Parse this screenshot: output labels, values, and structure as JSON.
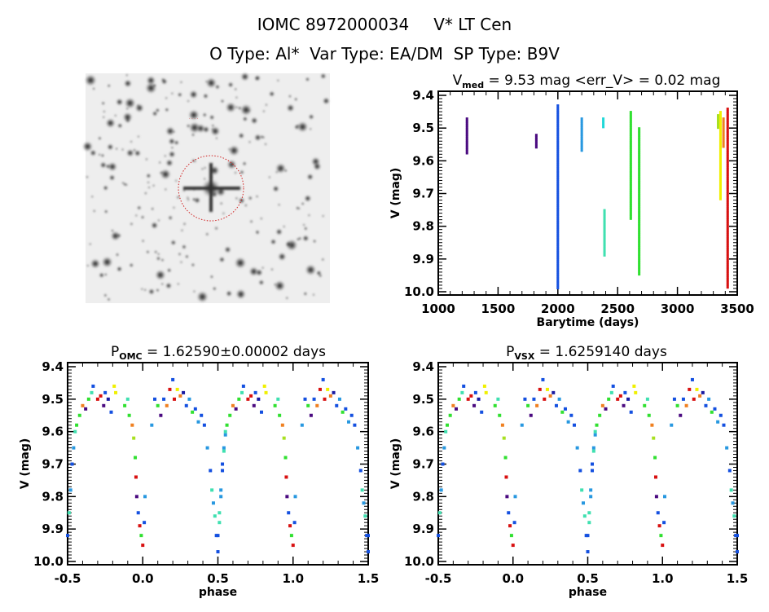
{
  "header": {
    "line1_id": "IOMC 8972000034",
    "line1_name": "V* LT Cen",
    "line2": "O Type: Al*  Var Type: EA/DM  SP Type: B9V"
  },
  "image_panel": {
    "description_marks": "finding chart, red circle on target"
  },
  "colors": {
    "purple": "#4a0a80",
    "blue": "#1450e0",
    "lightblue": "#2898e0",
    "cyan": "#20d8d8",
    "teal": "#40e0b0",
    "green": "#30e030",
    "yellowgreen": "#a8e020",
    "yellow": "#f0f000",
    "orange": "#f08020",
    "red": "#d81010",
    "darkblue": "#1a1aa0"
  },
  "chart_data": [
    {
      "type": "scatter",
      "title_main": "V",
      "title_sub": "med",
      "title_rest": " = 9.53 mag <err_V> = 0.02 mag",
      "xlabel": "Barytime (days)",
      "ylabel": "V (mag)",
      "xlim": [
        1000,
        3500
      ],
      "ylim": [
        10.0,
        9.4
      ],
      "xticks": [
        "1000",
        "1500",
        "2000",
        "2500",
        "3000",
        "3500"
      ],
      "yticks": [
        "9.4",
        "9.5",
        "9.6",
        "9.7",
        "9.8",
        "9.9",
        "10.0"
      ],
      "series": [
        {
          "x": 1240,
          "vmin": 9.47,
          "vmax": 9.58,
          "color": "purple"
        },
        {
          "x": 1820,
          "vmin": 9.52,
          "vmax": 9.56,
          "color": "purple"
        },
        {
          "x": 2000,
          "vmin": 9.43,
          "vmax": 9.99,
          "color": "blue"
        },
        {
          "x": 2200,
          "vmin": 9.47,
          "vmax": 9.57,
          "color": "lightblue"
        },
        {
          "x": 2380,
          "vmin": 9.47,
          "vmax": 9.5,
          "color": "cyan"
        },
        {
          "x": 2390,
          "vmin": 9.75,
          "vmax": 9.89,
          "color": "teal"
        },
        {
          "x": 2610,
          "vmin": 9.45,
          "vmax": 9.78,
          "color": "green"
        },
        {
          "x": 2680,
          "vmin": 9.5,
          "vmax": 9.95,
          "color": "green"
        },
        {
          "x": 3340,
          "vmin": 9.46,
          "vmax": 9.5,
          "color": "yellowgreen"
        },
        {
          "x": 3360,
          "vmin": 9.45,
          "vmax": 9.72,
          "color": "yellow"
        },
        {
          "x": 3385,
          "vmin": 9.47,
          "vmax": 9.56,
          "color": "orange"
        },
        {
          "x": 3420,
          "vmin": 9.44,
          "vmax": 9.99,
          "color": "red"
        }
      ]
    },
    {
      "type": "scatter",
      "title_main": "P",
      "title_sub": "OMC",
      "title_rest": " = 1.62590±0.00002 days",
      "xlabel": "phase",
      "ylabel": "V (mag)",
      "xlim": [
        -0.5,
        1.5
      ],
      "ylim": [
        10.0,
        9.4
      ],
      "xticks": [
        "-0.5",
        "0.0",
        "0.5",
        "1.0",
        "1.5"
      ],
      "yticks": [
        "9.4",
        "9.5",
        "9.6",
        "9.7",
        "9.8",
        "9.9",
        "10.0"
      ]
    },
    {
      "type": "scatter",
      "title_main": "P",
      "title_sub": "VSX",
      "title_rest": " = 1.6259140 days",
      "xlabel": "phase",
      "ylabel": "V (mag)",
      "xlim": [
        -0.5,
        1.5
      ],
      "ylim": [
        10.0,
        9.4
      ],
      "xticks": [
        "-0.5",
        "0.0",
        "0.5",
        "1.0",
        "1.5"
      ],
      "yticks": [
        "9.4",
        "9.5",
        "9.6",
        "9.7",
        "9.8",
        "9.9",
        "10.0"
      ]
    }
  ],
  "phase_points": [
    [
      -0.5,
      9.92,
      "blue"
    ],
    [
      -0.49,
      9.85,
      "teal"
    ],
    [
      -0.48,
      9.78,
      "lightblue"
    ],
    [
      -0.47,
      9.7,
      "blue"
    ],
    [
      -0.46,
      9.65,
      "lightblue"
    ],
    [
      -0.45,
      9.6,
      "teal"
    ],
    [
      -0.44,
      9.58,
      "green"
    ],
    [
      -0.42,
      9.55,
      "green"
    ],
    [
      -0.4,
      9.52,
      "orange"
    ],
    [
      -0.38,
      9.53,
      "purple"
    ],
    [
      -0.36,
      9.5,
      "green"
    ],
    [
      -0.34,
      9.48,
      "teal"
    ],
    [
      -0.33,
      9.46,
      "blue"
    ],
    [
      -0.3,
      9.5,
      "red"
    ],
    [
      -0.28,
      9.49,
      "red"
    ],
    [
      -0.26,
      9.52,
      "purple"
    ],
    [
      -0.25,
      9.48,
      "blue"
    ],
    [
      -0.23,
      9.5,
      "darkblue"
    ],
    [
      -0.21,
      9.54,
      "blue"
    ],
    [
      -0.19,
      9.46,
      "yellow"
    ],
    [
      -0.18,
      9.48,
      "yellow"
    ],
    [
      -0.12,
      9.52,
      "green"
    ],
    [
      -0.1,
      9.5,
      "teal"
    ],
    [
      -0.09,
      9.55,
      "green"
    ],
    [
      -0.07,
      9.58,
      "orange"
    ],
    [
      -0.06,
      9.62,
      "yellowgreen"
    ],
    [
      -0.05,
      9.68,
      "green"
    ],
    [
      -0.045,
      9.74,
      "red"
    ],
    [
      -0.04,
      9.8,
      "purple"
    ],
    [
      -0.03,
      9.85,
      "blue"
    ],
    [
      -0.02,
      9.89,
      "red"
    ],
    [
      -0.01,
      9.92,
      "green"
    ],
    [
      0.0,
      9.95,
      "red"
    ],
    [
      0.01,
      9.88,
      "blue"
    ],
    [
      0.015,
      9.8,
      "lightblue"
    ],
    [
      0.06,
      9.58,
      "lightblue"
    ],
    [
      0.08,
      9.5,
      "blue"
    ],
    [
      0.1,
      9.52,
      "green"
    ],
    [
      0.12,
      9.55,
      "purple"
    ],
    [
      0.14,
      9.5,
      "blue"
    ],
    [
      0.16,
      9.52,
      "orange"
    ],
    [
      0.18,
      9.47,
      "red"
    ],
    [
      0.2,
      9.44,
      "blue"
    ],
    [
      0.21,
      9.5,
      "red"
    ],
    [
      0.23,
      9.47,
      "yellow"
    ],
    [
      0.25,
      9.49,
      "orange"
    ],
    [
      0.27,
      9.48,
      "darkblue"
    ],
    [
      0.29,
      9.52,
      "blue"
    ],
    [
      0.31,
      9.5,
      "lightblue"
    ],
    [
      0.33,
      9.54,
      "green"
    ],
    [
      0.35,
      9.53,
      "blue"
    ],
    [
      0.37,
      9.57,
      "lightblue"
    ],
    [
      0.39,
      9.55,
      "blue"
    ],
    [
      0.41,
      9.58,
      "blue"
    ],
    [
      0.43,
      9.65,
      "lightblue"
    ],
    [
      0.45,
      9.72,
      "blue"
    ],
    [
      0.46,
      9.78,
      "teal"
    ],
    [
      0.47,
      9.82,
      "lightblue"
    ],
    [
      0.48,
      9.86,
      "teal"
    ],
    [
      0.49,
      9.92,
      "blue"
    ],
    [
      0.5,
      9.97,
      "blue"
    ],
    [
      0.51,
      9.88,
      "teal"
    ],
    [
      0.52,
      9.8,
      "lightblue"
    ],
    [
      0.53,
      9.72,
      "blue"
    ],
    [
      0.54,
      9.66,
      "teal"
    ],
    [
      0.55,
      9.61,
      "lightblue"
    ]
  ]
}
